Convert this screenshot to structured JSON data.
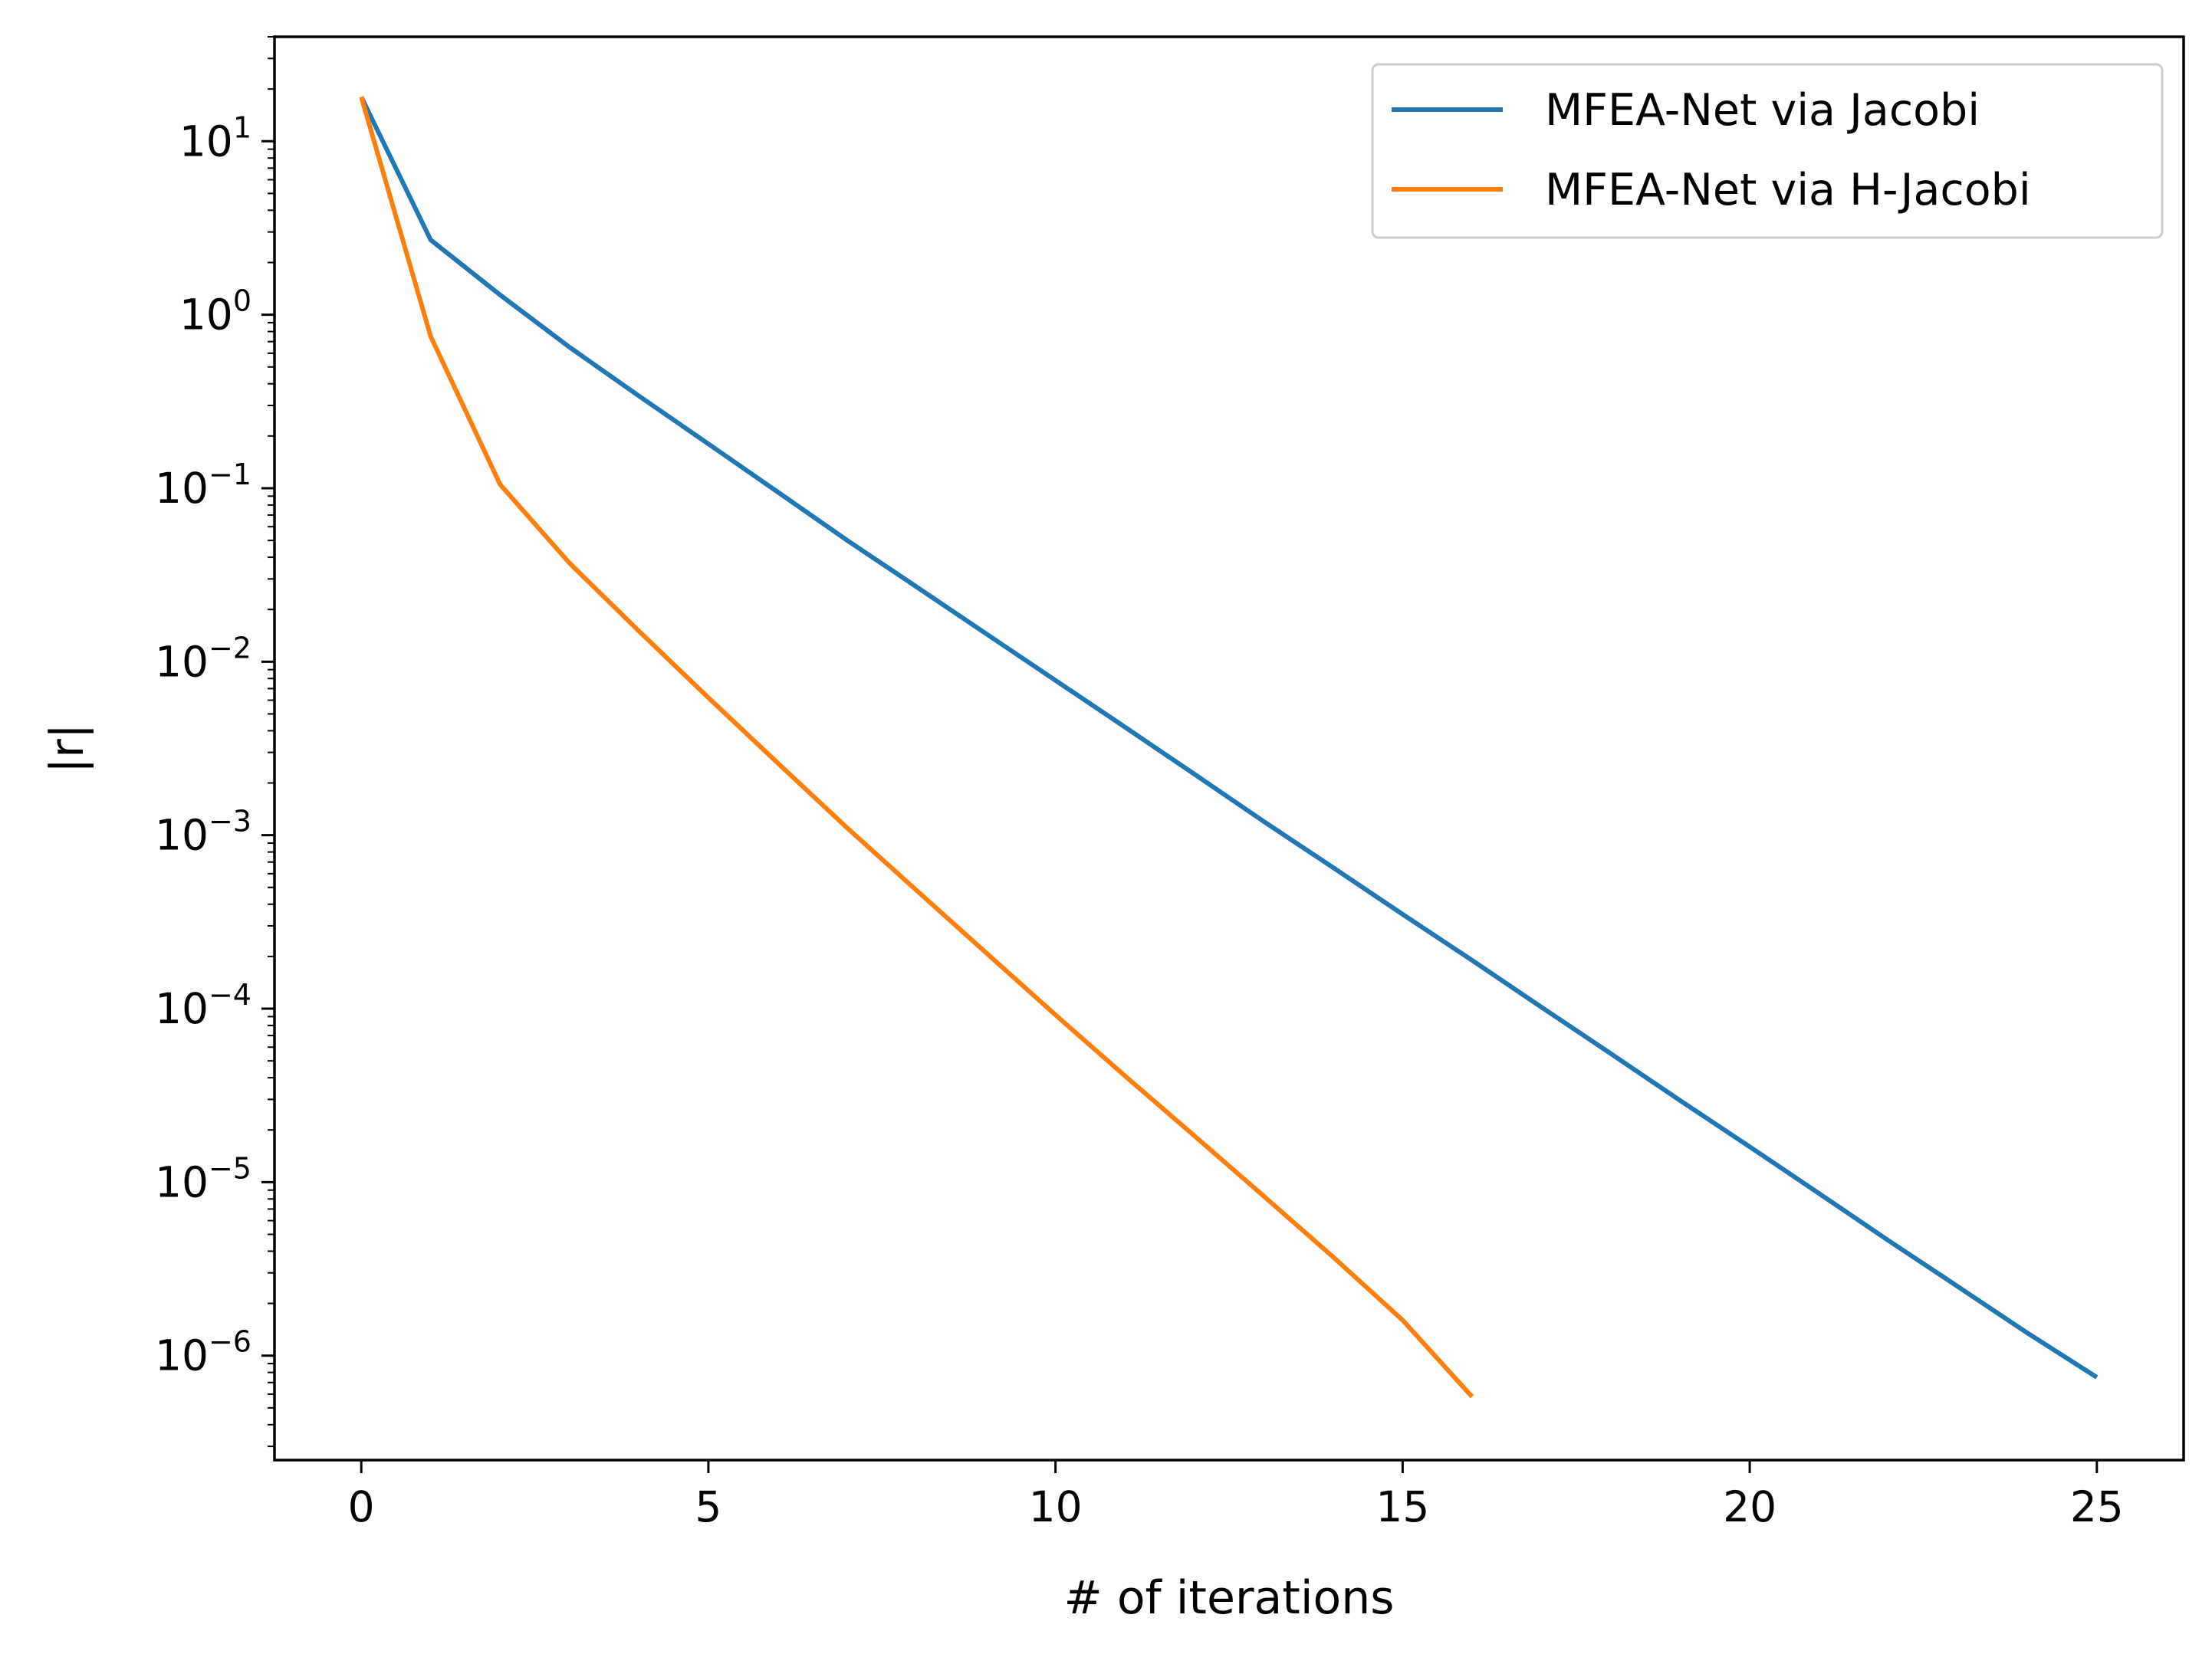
{
  "chart_data": {
    "type": "line",
    "title": "",
    "xlabel": "# of iterations",
    "ylabel": "|r|",
    "yscale": "log",
    "xlim": [
      -1.25,
      26.25
    ],
    "ylim": [
      2.5e-07,
      40
    ],
    "xticks": [
      0,
      5,
      10,
      15,
      20,
      25
    ],
    "yticks": [
      {
        "base": "10",
        "exp": "1",
        "value": 10
      },
      {
        "base": "10",
        "exp": "0",
        "value": 1
      },
      {
        "base": "10",
        "exp": "−1",
        "value": 0.1
      },
      {
        "base": "10",
        "exp": "−2",
        "value": 0.01
      },
      {
        "base": "10",
        "exp": "−3",
        "value": 0.001
      },
      {
        "base": "10",
        "exp": "−4",
        "value": 0.0001
      },
      {
        "base": "10",
        "exp": "−5",
        "value": 1e-05
      },
      {
        "base": "10",
        "exp": "−6",
        "value": 1e-06
      }
    ],
    "grid": false,
    "legend_position": "top-right",
    "series": [
      {
        "name": "MFEA-Net via Jacobi",
        "color": "#1f77b4",
        "x": [
          0,
          1,
          2,
          3,
          4,
          5,
          6,
          7,
          8,
          9,
          10,
          11,
          12,
          13,
          14,
          15,
          16,
          17,
          18,
          19,
          20,
          21,
          22,
          23,
          24,
          25
        ],
        "y": [
          18,
          2.7,
          1.3,
          0.65,
          0.34,
          0.18,
          0.095,
          0.05,
          0.027,
          0.0145,
          0.0078,
          0.0042,
          0.00225,
          0.0012,
          0.00065,
          0.00035,
          0.00019,
          0.000102,
          5.5e-05,
          2.95e-05,
          1.6e-05,
          8.6e-06,
          4.6e-06,
          2.5e-06,
          1.35e-06,
          7.5e-07
        ]
      },
      {
        "name": "MFEA-Net via H-Jacobi",
        "color": "#ff7f0e",
        "x": [
          0,
          1,
          2,
          3,
          4,
          5,
          6,
          7,
          8,
          9,
          10,
          11,
          12,
          13,
          14,
          15,
          16
        ],
        "y": [
          18,
          0.75,
          0.105,
          0.037,
          0.015,
          0.0062,
          0.0026,
          0.0011,
          0.00048,
          0.00021,
          9.2e-05,
          4.1e-05,
          1.85e-05,
          8.3e-06,
          3.7e-06,
          1.6e-06,
          5.8e-07
        ]
      }
    ]
  }
}
